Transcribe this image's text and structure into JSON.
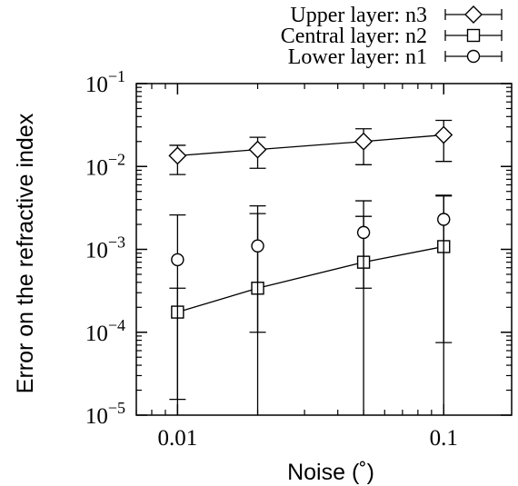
{
  "chart_data": {
    "type": "scatter",
    "xlabel": "Noise (˚)",
    "ylabel": "Error on the refractive index",
    "x_scale": "log",
    "y_scale": "log",
    "xlim": [
      0.007,
      0.18
    ],
    "ylim": [
      1e-05,
      0.1
    ],
    "x_ticks": [
      {
        "value": 0.01,
        "label": "0.01"
      },
      {
        "value": 0.1,
        "label": "0.1"
      }
    ],
    "y_ticks": [
      {
        "value": 0.1,
        "base": "10",
        "exp": "−1"
      },
      {
        "value": 0.01,
        "base": "10",
        "exp": "−2"
      },
      {
        "value": 0.001,
        "base": "10",
        "exp": "−3"
      },
      {
        "value": 0.0001,
        "base": "10",
        "exp": "−4"
      },
      {
        "value": 1e-05,
        "base": "10",
        "exp": "−5"
      }
    ],
    "legend_position": "top-right, outside plot",
    "grid": false,
    "series": [
      {
        "name": "Upper layer: n3",
        "marker": "diamond",
        "line": true,
        "x": [
          0.01,
          0.02,
          0.05,
          0.1
        ],
        "y": [
          0.0135,
          0.016,
          0.02,
          0.024
        ],
        "err_low": [
          0.008,
          0.0095,
          0.0105,
          0.0115
        ],
        "err_high": [
          0.018,
          0.0225,
          0.0285,
          0.036
        ]
      },
      {
        "name": "Central layer: n2",
        "marker": "square",
        "line": true,
        "x": [
          0.01,
          0.02,
          0.05,
          0.1
        ],
        "y": [
          0.000175,
          0.00034,
          0.0007,
          0.00108
        ],
        "err_low": [
          1.55e-05,
          1e-05,
          1e-05,
          1e-05
        ],
        "err_high": [
          0.00034,
          0.00335,
          0.00385,
          0.0044
        ]
      },
      {
        "name": "Lower layer: n1",
        "marker": "circle",
        "line": false,
        "x": [
          0.01,
          0.02,
          0.05,
          0.1
        ],
        "y": [
          0.00075,
          0.0011,
          0.0016,
          0.0023
        ],
        "err_low": [
          1e-05,
          0.0001,
          0.00034,
          7.5e-05
        ],
        "err_high": [
          0.0026,
          0.0027,
          0.0025,
          0.0045
        ]
      }
    ]
  }
}
